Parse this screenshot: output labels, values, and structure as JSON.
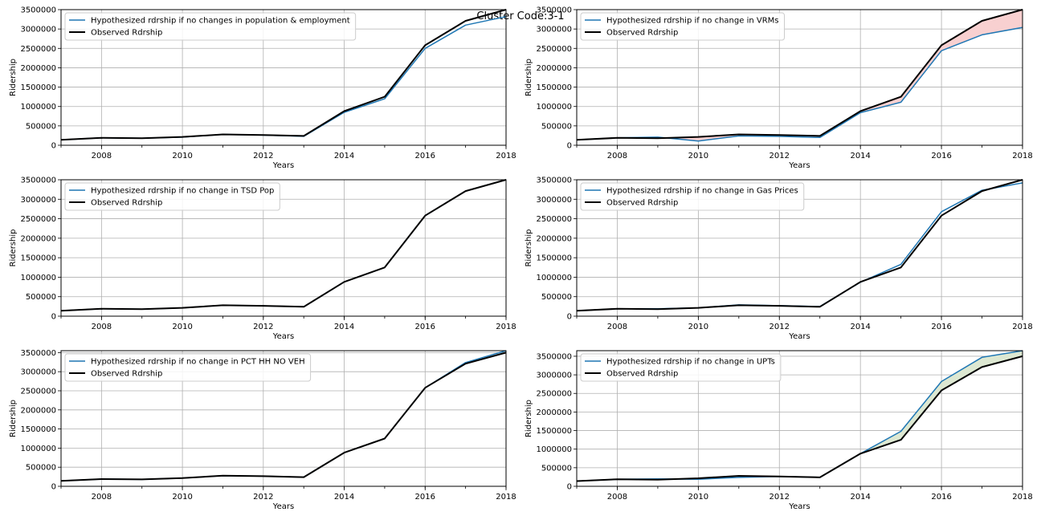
{
  "figure": {
    "suptitle": "Cluster Code:3-1",
    "colors": {
      "hypothesized": "#1f77b4",
      "observed": "#000000",
      "fill_below": "#f8d0d0",
      "fill_above": "#dde8d2",
      "grid": "#b0b0b0"
    }
  },
  "chart_data": [
    {
      "type": "line",
      "xlabel": "Years",
      "ylabel": "Ridership",
      "xlim": [
        2007,
        2018
      ],
      "ylim": [
        0,
        3500000
      ],
      "xticks": [
        2008,
        2010,
        2012,
        2014,
        2016,
        2018
      ],
      "yticks": [
        0,
        500000,
        1000000,
        1500000,
        2000000,
        2500000,
        3000000,
        3500000
      ],
      "grid": true,
      "legend_position": "top-left",
      "x": [
        2007,
        2008,
        2009,
        2010,
        2011,
        2012,
        2013,
        2014,
        2015,
        2016,
        2017,
        2018
      ],
      "series": [
        {
          "name": "Hypothesized rdrship if no changes in population & employment",
          "values": [
            140000,
            190000,
            180000,
            210000,
            280000,
            260000,
            230000,
            850000,
            1200000,
            2500000,
            3100000,
            3320000
          ]
        },
        {
          "name": "Observed Rdrship",
          "values": [
            140000,
            190000,
            180000,
            215000,
            280000,
            265000,
            240000,
            880000,
            1250000,
            2580000,
            3210000,
            3500000
          ]
        }
      ],
      "fill_between": false
    },
    {
      "type": "line",
      "xlabel": "Years",
      "ylabel": "Ridership",
      "xlim": [
        2007,
        2018
      ],
      "ylim": [
        0,
        3500000
      ],
      "xticks": [
        2008,
        2010,
        2012,
        2014,
        2016,
        2018
      ],
      "yticks": [
        0,
        500000,
        1000000,
        1500000,
        2000000,
        2500000,
        3000000,
        3500000
      ],
      "grid": true,
      "legend_position": "top-left",
      "x": [
        2007,
        2008,
        2009,
        2010,
        2011,
        2012,
        2013,
        2014,
        2015,
        2016,
        2017,
        2018
      ],
      "series": [
        {
          "name": "Hypothesized rdrship if no change in VRMs",
          "values": [
            140000,
            190000,
            210000,
            110000,
            240000,
            230000,
            200000,
            840000,
            1110000,
            2440000,
            2850000,
            3040000
          ]
        },
        {
          "name": "Observed Rdrship",
          "values": [
            140000,
            190000,
            180000,
            215000,
            280000,
            265000,
            240000,
            880000,
            1250000,
            2580000,
            3210000,
            3500000
          ]
        }
      ],
      "fill_between": true
    },
    {
      "type": "line",
      "xlabel": "Years",
      "ylabel": "Ridership",
      "xlim": [
        2007,
        2018
      ],
      "ylim": [
        0,
        3500000
      ],
      "xticks": [
        2008,
        2010,
        2012,
        2014,
        2016,
        2018
      ],
      "yticks": [
        0,
        500000,
        1000000,
        1500000,
        2000000,
        2500000,
        3000000,
        3500000
      ],
      "grid": true,
      "legend_position": "top-left",
      "x": [
        2007,
        2008,
        2009,
        2010,
        2011,
        2012,
        2013,
        2014,
        2015,
        2016,
        2017,
        2018
      ],
      "series": [
        {
          "name": "Hypothesized rdrship if no change in TSD Pop",
          "values": [
            140000,
            190000,
            180000,
            215000,
            280000,
            265000,
            240000,
            880000,
            1250000,
            2580000,
            3210000,
            3500000
          ]
        },
        {
          "name": "Observed Rdrship",
          "values": [
            140000,
            190000,
            180000,
            215000,
            280000,
            265000,
            240000,
            880000,
            1250000,
            2580000,
            3210000,
            3500000
          ]
        }
      ],
      "fill_between": false
    },
    {
      "type": "line",
      "xlabel": "Years",
      "ylabel": "Ridership",
      "xlim": [
        2007,
        2018
      ],
      "ylim": [
        0,
        3500000
      ],
      "xticks": [
        2008,
        2010,
        2012,
        2014,
        2016,
        2018
      ],
      "yticks": [
        0,
        500000,
        1000000,
        1500000,
        2000000,
        2500000,
        3000000,
        3500000
      ],
      "grid": true,
      "legend_position": "top-left",
      "x": [
        2007,
        2008,
        2009,
        2010,
        2011,
        2012,
        2013,
        2014,
        2015,
        2016,
        2017,
        2018
      ],
      "series": [
        {
          "name": "Hypothesized rdrship if no change in Gas Prices",
          "values": [
            140000,
            190000,
            190000,
            215000,
            290000,
            270000,
            250000,
            870000,
            1330000,
            2680000,
            3230000,
            3420000
          ]
        },
        {
          "name": "Observed Rdrship",
          "values": [
            140000,
            190000,
            180000,
            215000,
            280000,
            265000,
            240000,
            880000,
            1250000,
            2580000,
            3210000,
            3500000
          ]
        }
      ],
      "fill_between": false
    },
    {
      "type": "line",
      "xlabel": "Years",
      "ylabel": "Ridership",
      "xlim": [
        2007,
        2018
      ],
      "ylim": [
        0,
        3550000
      ],
      "xticks": [
        2008,
        2010,
        2012,
        2014,
        2016,
        2018
      ],
      "yticks": [
        0,
        500000,
        1000000,
        1500000,
        2000000,
        2500000,
        3000000,
        3500000
      ],
      "grid": true,
      "legend_position": "top-left",
      "x": [
        2007,
        2008,
        2009,
        2010,
        2011,
        2012,
        2013,
        2014,
        2015,
        2016,
        2017,
        2018
      ],
      "series": [
        {
          "name": "Hypothesized rdrship if no change in PCT HH NO VEH",
          "values": [
            140000,
            190000,
            180000,
            215000,
            280000,
            265000,
            240000,
            880000,
            1250000,
            2580000,
            3240000,
            3550000
          ]
        },
        {
          "name": "Observed Rdrship",
          "values": [
            140000,
            190000,
            180000,
            215000,
            280000,
            265000,
            240000,
            880000,
            1250000,
            2580000,
            3210000,
            3500000
          ]
        }
      ],
      "fill_between": false
    },
    {
      "type": "line",
      "xlabel": "Years",
      "ylabel": "Ridership",
      "xlim": [
        2007,
        2018
      ],
      "ylim": [
        0,
        3650000
      ],
      "xticks": [
        2008,
        2010,
        2012,
        2014,
        2016,
        2018
      ],
      "yticks": [
        0,
        500000,
        1000000,
        1500000,
        2000000,
        2500000,
        3000000,
        3500000
      ],
      "grid": true,
      "legend_position": "top-left",
      "x": [
        2007,
        2008,
        2009,
        2010,
        2011,
        2012,
        2013,
        2014,
        2015,
        2016,
        2017,
        2018
      ],
      "series": [
        {
          "name": "Hypothesized rdrship if no change in UPTs",
          "values": [
            140000,
            190000,
            200000,
            190000,
            240000,
            265000,
            240000,
            880000,
            1480000,
            2820000,
            3470000,
            3650000
          ]
        },
        {
          "name": "Observed Rdrship",
          "values": [
            140000,
            190000,
            180000,
            215000,
            280000,
            265000,
            240000,
            880000,
            1250000,
            2580000,
            3210000,
            3500000
          ]
        }
      ],
      "fill_between": true
    }
  ]
}
